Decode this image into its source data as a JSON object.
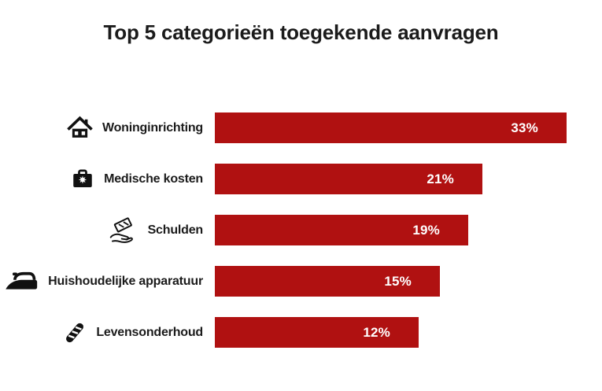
{
  "page": {
    "background": "#FFFFFF"
  },
  "chart_data": {
    "type": "bar",
    "orientation": "horizontal",
    "title": "Top 5 categorieën toegekende aanvragen",
    "categories": [
      "Woninginrichting",
      "Medische kosten",
      "Schulden",
      "Huishoudelijke apparatuur",
      "Levensonderhoud"
    ],
    "values": [
      33,
      21,
      19,
      15,
      12
    ],
    "value_labels": [
      "33%",
      "21%",
      "19%",
      "15%",
      "12%"
    ],
    "icons": [
      "house-icon",
      "first-aid-kit-icon",
      "hand-receiving-money-icon",
      "clothes-iron-icon",
      "baguette-icon"
    ],
    "bar_color": "#B01111",
    "value_label_color": "#FFFFFF",
    "category_label_color": "#1B1B1B",
    "title_color": "#1B1B1B",
    "xlim": [
      0,
      35
    ],
    "grid": false,
    "legend": false,
    "value_labels_position": "inside-right"
  }
}
